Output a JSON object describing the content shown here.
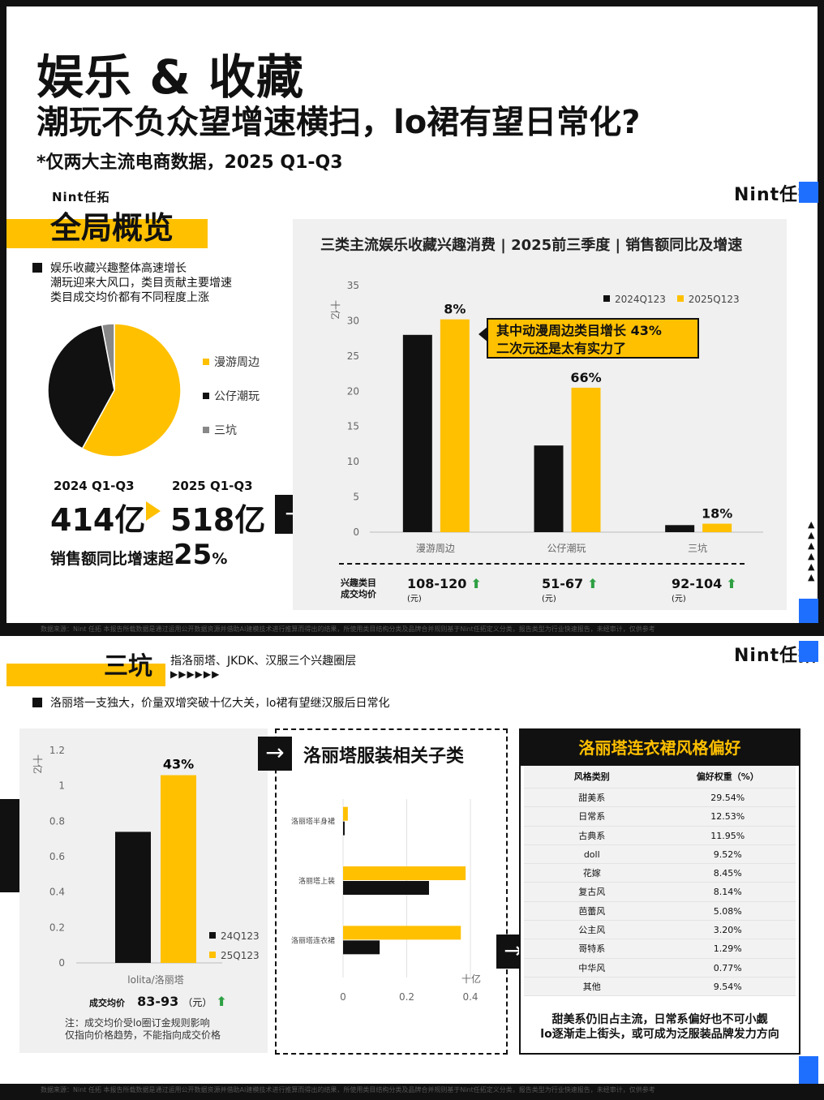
{
  "header": {
    "title": "娱乐 & 收藏",
    "subtitle": "潮玩不负众望增速横扫，lo裙有望日常化?",
    "note": "*仅两大主流电商数据，2025 Q1-Q3"
  },
  "brand": {
    "name": "Nint任拓"
  },
  "overview": {
    "section_title": "全局概览",
    "bullets": [
      "娱乐收藏兴趣整体高速增长",
      "潮玩迎来大风口，类目贡献主要增速",
      "类目成交均价都有不同程度上涨"
    ],
    "legend": [
      {
        "label": "漫游周边",
        "color": "#ffc000"
      },
      {
        "label": "公仔潮玩",
        "color": "#111111"
      },
      {
        "label": "三坑",
        "color": "#888888"
      }
    ],
    "pie_shares": [
      0.58,
      0.39,
      0.03
    ],
    "period_2024": "2024 Q1-Q3",
    "period_2025": "2025 Q1-Q3",
    "value_2024": "414亿",
    "value_2025": "518亿",
    "growth_text": "销售额同比增速超",
    "growth_value": "25",
    "growth_unit": "%"
  },
  "chart_data": [
    {
      "type": "bar",
      "title": "三类主流娱乐收藏兴趣消费 | 2025前三季度 | 销售额同比及增速",
      "ylabel": "十亿",
      "ylim": [
        0,
        35
      ],
      "yticks": [
        0,
        5,
        10,
        15,
        20,
        25,
        30,
        35
      ],
      "categories": [
        "漫游周边",
        "公仔潮玩",
        "三坑"
      ],
      "series": [
        {
          "name": "2024Q123",
          "color": "#111111",
          "values": [
            28,
            12.3,
            1.0
          ]
        },
        {
          "name": "2025Q123",
          "color": "#ffc000",
          "values": [
            30.2,
            20.5,
            1.2
          ]
        }
      ],
      "growth_labels": [
        "8%",
        "66%",
        "18%"
      ],
      "callout": [
        "其中动漫周边类目增长 43%",
        "二次元还是太有实力了"
      ],
      "price_row_label": [
        "兴趣类目",
        "成交均价"
      ],
      "prices": [
        "108-120",
        "51-67",
        "92-104"
      ],
      "price_unit": "(元)",
      "price_arrow": "⬆"
    },
    {
      "type": "bar",
      "ylabel": "十亿",
      "ylim": [
        0,
        1.2
      ],
      "yticks": [
        0,
        0.2,
        0.4,
        0.6,
        0.8,
        1,
        1.2
      ],
      "categories": [
        "lolita/洛丽塔"
      ],
      "series": [
        {
          "name": "24Q123",
          "color": "#111111",
          "values": [
            0.74
          ]
        },
        {
          "name": "25Q123",
          "color": "#ffc000",
          "values": [
            1.06
          ]
        }
      ],
      "growth_label": "43%",
      "price_label": "成交均价",
      "price_value": "83-93",
      "price_unit": "（元）",
      "note": [
        "注：成交均价受lo圈订金规则影响",
        "仅指向价格趋势，不能指向成交价格"
      ]
    },
    {
      "type": "bar",
      "orientation": "horizontal",
      "title": "洛丽塔服装相关子类",
      "xlabel": "十亿",
      "xlim": [
        0,
        0.4
      ],
      "xticks": [
        0,
        0.2,
        0.4
      ],
      "categories": [
        "洛丽塔半身裙",
        "洛丽塔上装",
        "洛丽塔连衣裙"
      ],
      "series": [
        {
          "name": "24Q123",
          "color": "#111111",
          "values": [
            0.005,
            0.27,
            0.115
          ]
        },
        {
          "name": "25Q123",
          "color": "#ffc000",
          "values": [
            0.015,
            0.385,
            0.37
          ]
        }
      ]
    }
  ],
  "sankeng": {
    "section_title": "三坑",
    "desc": "指洛丽塔、JKDK、汉服三个兴趣圈层",
    "triangles": "▶▶▶▶▶▶",
    "bullet": "洛丽塔一支独大，价量双增突破十亿大关，lo裙有望继汉服后日常化"
  },
  "style_table": {
    "title": "洛丽塔连衣裙风格偏好",
    "col1": "风格类别",
    "col2": "偏好权重（%）",
    "rows": [
      [
        "甜美系",
        "29.54%"
      ],
      [
        "日常系",
        "12.53%"
      ],
      [
        "古典系",
        "11.95%"
      ],
      [
        "doll",
        "9.52%"
      ],
      [
        "花嫁",
        "8.45%"
      ],
      [
        "复古风",
        "8.14%"
      ],
      [
        "芭蕾风",
        "5.08%"
      ],
      [
        "公主风",
        "3.20%"
      ],
      [
        "哥特系",
        "1.29%"
      ],
      [
        "中华风",
        "0.77%"
      ],
      [
        "其他",
        "9.54%"
      ]
    ],
    "conclusion": [
      "甜美系仍旧占主流，日常系偏好也不可小觑",
      "lo逐渐走上街头，或可成为泛服装品牌发力方向"
    ]
  },
  "footer": {
    "text": "数据来源：Nint 任拓    本报告所载数据是通过运用公开数据资源并借助AI建模技术进行推算而得出的结果，所使用类目结构分类及品牌合并规则基于Nint任拓定义分类，报告类型为行业快速报告，未经审计，仅供参考"
  },
  "arrow_glyph": "→",
  "side_triangles": "▲▲▲▲▲▲"
}
